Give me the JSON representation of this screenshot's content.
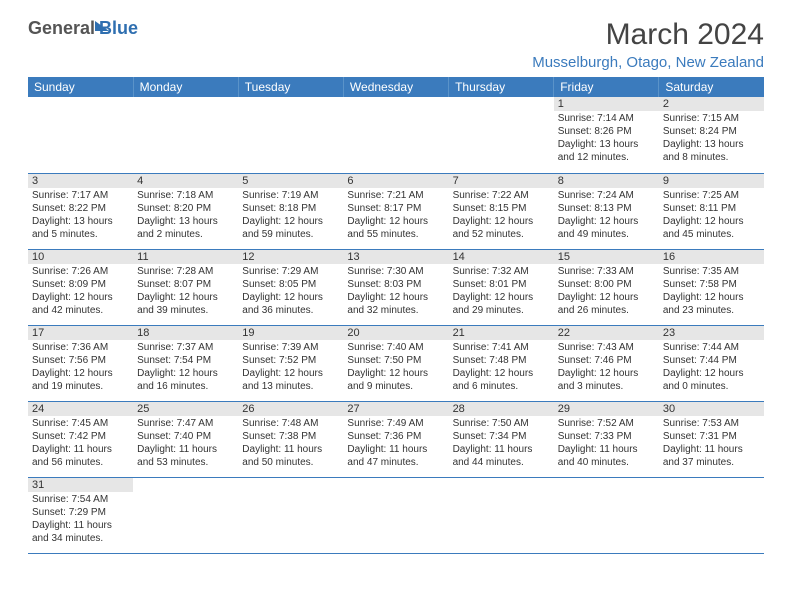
{
  "logo": {
    "general": "General",
    "blue": "Blue"
  },
  "title": "March 2024",
  "location": "Musselburgh, Otago, New Zealand",
  "colors": {
    "header_bg": "#3b7bbd",
    "header_text": "#ffffff",
    "daynum_bg": "#e6e6e6",
    "row_border": "#3b7bbd",
    "location_color": "#3b7bbd"
  },
  "weekdays": [
    "Sunday",
    "Monday",
    "Tuesday",
    "Wednesday",
    "Thursday",
    "Friday",
    "Saturday"
  ],
  "weeks": [
    [
      null,
      null,
      null,
      null,
      null,
      {
        "d": "1",
        "sr": "7:14 AM",
        "ss": "8:26 PM",
        "dl": "13 hours and 12 minutes."
      },
      {
        "d": "2",
        "sr": "7:15 AM",
        "ss": "8:24 PM",
        "dl": "13 hours and 8 minutes."
      }
    ],
    [
      {
        "d": "3",
        "sr": "7:17 AM",
        "ss": "8:22 PM",
        "dl": "13 hours and 5 minutes."
      },
      {
        "d": "4",
        "sr": "7:18 AM",
        "ss": "8:20 PM",
        "dl": "13 hours and 2 minutes."
      },
      {
        "d": "5",
        "sr": "7:19 AM",
        "ss": "8:18 PM",
        "dl": "12 hours and 59 minutes."
      },
      {
        "d": "6",
        "sr": "7:21 AM",
        "ss": "8:17 PM",
        "dl": "12 hours and 55 minutes."
      },
      {
        "d": "7",
        "sr": "7:22 AM",
        "ss": "8:15 PM",
        "dl": "12 hours and 52 minutes."
      },
      {
        "d": "8",
        "sr": "7:24 AM",
        "ss": "8:13 PM",
        "dl": "12 hours and 49 minutes."
      },
      {
        "d": "9",
        "sr": "7:25 AM",
        "ss": "8:11 PM",
        "dl": "12 hours and 45 minutes."
      }
    ],
    [
      {
        "d": "10",
        "sr": "7:26 AM",
        "ss": "8:09 PM",
        "dl": "12 hours and 42 minutes."
      },
      {
        "d": "11",
        "sr": "7:28 AM",
        "ss": "8:07 PM",
        "dl": "12 hours and 39 minutes."
      },
      {
        "d": "12",
        "sr": "7:29 AM",
        "ss": "8:05 PM",
        "dl": "12 hours and 36 minutes."
      },
      {
        "d": "13",
        "sr": "7:30 AM",
        "ss": "8:03 PM",
        "dl": "12 hours and 32 minutes."
      },
      {
        "d": "14",
        "sr": "7:32 AM",
        "ss": "8:01 PM",
        "dl": "12 hours and 29 minutes."
      },
      {
        "d": "15",
        "sr": "7:33 AM",
        "ss": "8:00 PM",
        "dl": "12 hours and 26 minutes."
      },
      {
        "d": "16",
        "sr": "7:35 AM",
        "ss": "7:58 PM",
        "dl": "12 hours and 23 minutes."
      }
    ],
    [
      {
        "d": "17",
        "sr": "7:36 AM",
        "ss": "7:56 PM",
        "dl": "12 hours and 19 minutes."
      },
      {
        "d": "18",
        "sr": "7:37 AM",
        "ss": "7:54 PM",
        "dl": "12 hours and 16 minutes."
      },
      {
        "d": "19",
        "sr": "7:39 AM",
        "ss": "7:52 PM",
        "dl": "12 hours and 13 minutes."
      },
      {
        "d": "20",
        "sr": "7:40 AM",
        "ss": "7:50 PM",
        "dl": "12 hours and 9 minutes."
      },
      {
        "d": "21",
        "sr": "7:41 AM",
        "ss": "7:48 PM",
        "dl": "12 hours and 6 minutes."
      },
      {
        "d": "22",
        "sr": "7:43 AM",
        "ss": "7:46 PM",
        "dl": "12 hours and 3 minutes."
      },
      {
        "d": "23",
        "sr": "7:44 AM",
        "ss": "7:44 PM",
        "dl": "12 hours and 0 minutes."
      }
    ],
    [
      {
        "d": "24",
        "sr": "7:45 AM",
        "ss": "7:42 PM",
        "dl": "11 hours and 56 minutes."
      },
      {
        "d": "25",
        "sr": "7:47 AM",
        "ss": "7:40 PM",
        "dl": "11 hours and 53 minutes."
      },
      {
        "d": "26",
        "sr": "7:48 AM",
        "ss": "7:38 PM",
        "dl": "11 hours and 50 minutes."
      },
      {
        "d": "27",
        "sr": "7:49 AM",
        "ss": "7:36 PM",
        "dl": "11 hours and 47 minutes."
      },
      {
        "d": "28",
        "sr": "7:50 AM",
        "ss": "7:34 PM",
        "dl": "11 hours and 44 minutes."
      },
      {
        "d": "29",
        "sr": "7:52 AM",
        "ss": "7:33 PM",
        "dl": "11 hours and 40 minutes."
      },
      {
        "d": "30",
        "sr": "7:53 AM",
        "ss": "7:31 PM",
        "dl": "11 hours and 37 minutes."
      }
    ],
    [
      {
        "d": "31",
        "sr": "7:54 AM",
        "ss": "7:29 PM",
        "dl": "11 hours and 34 minutes."
      },
      null,
      null,
      null,
      null,
      null,
      null
    ]
  ],
  "labels": {
    "sunrise": "Sunrise: ",
    "sunset": "Sunset: ",
    "daylight": "Daylight: "
  }
}
